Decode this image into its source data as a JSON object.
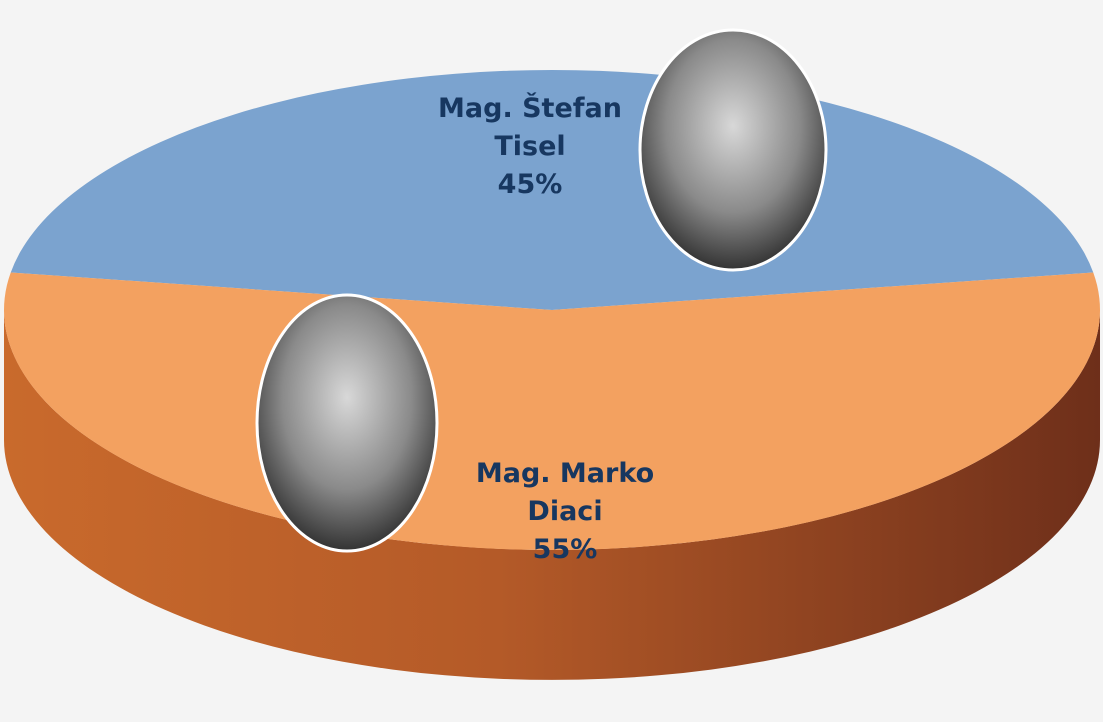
{
  "chart_data": {
    "type": "pie",
    "categories": [
      "Mag. Štefan Tisel",
      "Mag. Marko Diaci"
    ],
    "values": [
      45,
      55
    ],
    "value_labels": [
      "45%",
      "55%"
    ],
    "colors": [
      "#7ba3cf",
      "#f3a160"
    ]
  }
}
